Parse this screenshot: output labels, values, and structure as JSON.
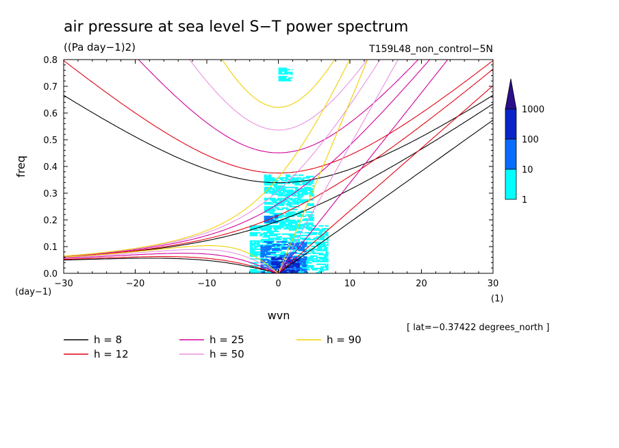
{
  "chart_data": {
    "type": "line",
    "title": "air pressure at sea level S−T power spectrum",
    "subtitle": "((Pa day−1)2)",
    "run_label": "T159L48_non_control−5N",
    "xlabel": "wvn",
    "ylabel": "freq",
    "x_unit_label": "(1)",
    "y_unit_label": "(day−1)",
    "xlim": [
      -30,
      30
    ],
    "ylim": [
      0,
      0.8
    ],
    "xticks": [
      -30,
      -20,
      -10,
      0,
      10,
      20,
      30
    ],
    "xtick_labels": [
      "−30",
      "−20",
      "−10",
      "0",
      "10",
      "20",
      "30"
    ],
    "yticks": [
      0,
      0.1,
      0.2,
      0.3,
      0.4,
      0.5,
      0.6,
      0.7,
      0.8
    ],
    "ytick_labels": [
      "0.0",
      "0.1",
      "0.2",
      "0.3",
      "0.4",
      "0.5",
      "0.6",
      "0.7",
      "0.8"
    ],
    "grid": false,
    "annotation": "[ lat=−0.37422 degrees_north ]",
    "colorbar": {
      "levels": [
        "1",
        "10",
        "100",
        "1000"
      ],
      "colors": [
        "#00ffff",
        "#0a6cff",
        "#0a23c8",
        "#2b0e8a"
      ]
    },
    "series": [
      {
        "name": "h =  8",
        "value": 8,
        "color": "#000000"
      },
      {
        "name": "h = 12",
        "value": 12,
        "color": "#e0000f"
      },
      {
        "name": "h = 25",
        "value": 25,
        "color": "#d0009a"
      },
      {
        "name": "h = 50",
        "value": 50,
        "color": "#e890e0"
      },
      {
        "name": "h = 90",
        "value": 90,
        "color": "#f0d000"
      }
    ],
    "shaded_regions": [
      {
        "x": [
          -4,
          7
        ],
        "y": [
          0.0,
          0.18
        ],
        "level": "1-10"
      },
      {
        "x": [
          -2,
          5
        ],
        "y": [
          0.18,
          0.37
        ],
        "level": "1-10"
      },
      {
        "x": [
          0,
          2
        ],
        "y": [
          0.72,
          0.77
        ],
        "level": "1-10"
      },
      {
        "x": [
          -2.5,
          4
        ],
        "y": [
          0.0,
          0.12
        ],
        "level": "10-100"
      },
      {
        "x": [
          -2,
          0
        ],
        "y": [
          0.19,
          0.22
        ],
        "level": "10-100"
      },
      {
        "x": [
          -1,
          3
        ],
        "y": [
          0.0,
          0.06
        ],
        "level": "100-1000"
      }
    ]
  }
}
